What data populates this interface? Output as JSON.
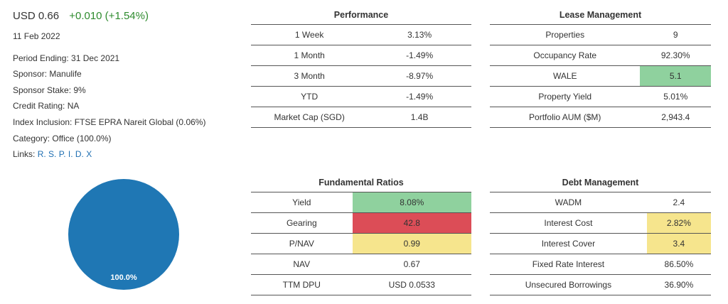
{
  "summary": {
    "price": "USD 0.66",
    "change": "+0.010 (+1.54%)",
    "date": "11 Feb 2022",
    "period_ending": "Period Ending: 31 Dec 2021",
    "sponsor": "Sponsor: Manulife",
    "sponsor_stake": "Sponsor Stake: 9%",
    "credit_rating": "Credit Rating: NA",
    "index_inclusion": "Index Inclusion: FTSE EPRA Nareit Global (0.06%)",
    "category": "Category: Office (100.0%)",
    "links_label": "Links:",
    "links": [
      "R.",
      "S.",
      "P.",
      "I.",
      "D.",
      "X"
    ]
  },
  "pie": {
    "label": "100.0%",
    "color": "#1f77b4",
    "slices": [
      {
        "value": 100.0
      }
    ]
  },
  "performance": {
    "title": "Performance",
    "rows": [
      {
        "label": "1 Week",
        "value": "3.13%",
        "tone": "pos"
      },
      {
        "label": "1 Month",
        "value": "-1.49%",
        "tone": "neg"
      },
      {
        "label": "3 Month",
        "value": "-8.97%",
        "tone": "neg"
      },
      {
        "label": "YTD",
        "value": "-1.49%",
        "tone": "neg"
      },
      {
        "label": "Market Cap (SGD)",
        "value": "1.4B",
        "tone": ""
      }
    ]
  },
  "lease": {
    "title": "Lease Management",
    "rows": [
      {
        "label": "Properties",
        "value": "9",
        "hl": ""
      },
      {
        "label": "Occupancy Rate",
        "value": "92.30%",
        "hl": ""
      },
      {
        "label": "WALE",
        "value": "5.1",
        "hl": "green"
      },
      {
        "label": "Property Yield",
        "value": "5.01%",
        "hl": ""
      },
      {
        "label": "Portfolio AUM ($M)",
        "value": "2,943.4",
        "hl": ""
      }
    ]
  },
  "fundamental": {
    "title": "Fundamental Ratios",
    "rows": [
      {
        "label": "Yield",
        "value": "8.08%",
        "hl": "green"
      },
      {
        "label": "Gearing",
        "value": "42.8",
        "hl": "red"
      },
      {
        "label": "P/NAV",
        "value": "0.99",
        "hl": "yellow"
      },
      {
        "label": "NAV",
        "value": "0.67",
        "hl": ""
      },
      {
        "label": "TTM DPU",
        "value": "USD 0.0533",
        "hl": ""
      }
    ]
  },
  "debt": {
    "title": "Debt Management",
    "rows": [
      {
        "label": "WADM",
        "value": "2.4",
        "hl": ""
      },
      {
        "label": "Interest Cost",
        "value": "2.82%",
        "hl": "yellow"
      },
      {
        "label": "Interest Cover",
        "value": "3.4",
        "hl": "yellow"
      },
      {
        "label": "Fixed Rate Interest",
        "value": "86.50%",
        "hl": ""
      },
      {
        "label": "Unsecured Borrowings",
        "value": "36.90%",
        "hl": ""
      }
    ]
  },
  "colors": {
    "positive": "#2e8b2e",
    "negative": "#d63838",
    "highlight_green": "#8fd19e",
    "highlight_red": "#dc4d57",
    "highlight_yellow": "#f6e58d",
    "link": "#1f6fb2"
  }
}
